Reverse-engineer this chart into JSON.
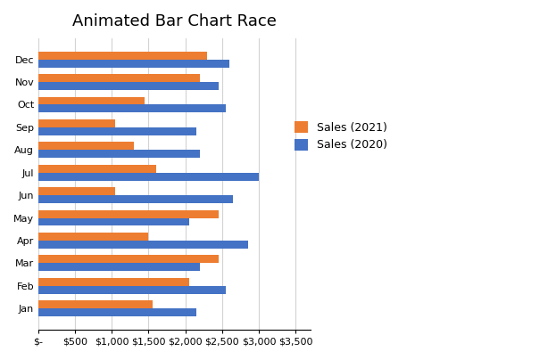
{
  "title": "Animated Bar Chart Race",
  "months": [
    "Jan",
    "Feb",
    "Mar",
    "Apr",
    "May",
    "Jun",
    "Jul",
    "Aug",
    "Sep",
    "Oct",
    "Nov",
    "Dec"
  ],
  "sales_2021": [
    1550,
    2050,
    2450,
    1500,
    2450,
    1050,
    1600,
    1300,
    1050,
    1450,
    2200,
    2300
  ],
  "sales_2020": [
    2150,
    2550,
    2200,
    2850,
    2050,
    2650,
    3000,
    2200,
    2150,
    2550,
    2450,
    2600
  ],
  "color_2021": "#ED7D31",
  "color_2020": "#4472C4",
  "legend_labels": [
    "Sales (2021)",
    "Sales (2020)"
  ],
  "xlabel_ticks": [
    0,
    500,
    1000,
    1500,
    2000,
    2500,
    3000,
    3500
  ],
  "xlabel_labels": [
    "$-",
    "$500",
    "$1,000",
    "$1,500",
    "$2,000",
    "$2,500",
    "$3,000",
    "$3,500"
  ],
  "xlim": [
    0,
    3700
  ],
  "background_color": "#FFFFFF",
  "plot_bg_color": "#FFFFFF",
  "title_fontsize": 13,
  "legend_fontsize": 9,
  "tick_fontsize": 8
}
